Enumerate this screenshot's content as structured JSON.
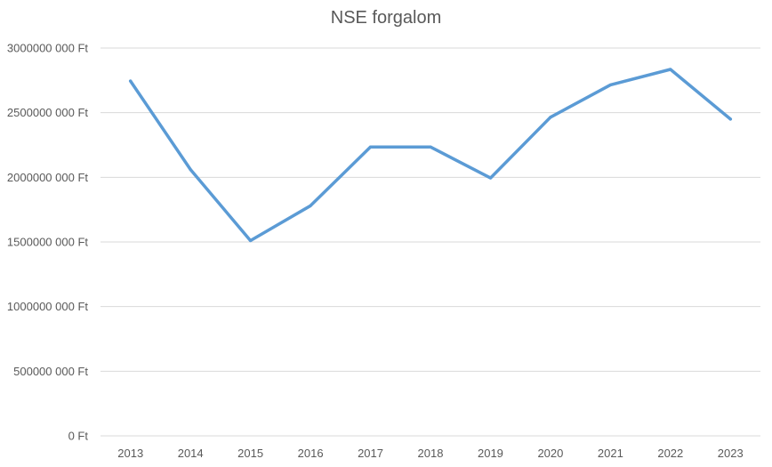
{
  "chart_data": {
    "type": "line",
    "title": "NSE forgalom",
    "xlabel": "",
    "ylabel": "",
    "categories": [
      "2013",
      "2014",
      "2015",
      "2016",
      "2017",
      "2018",
      "2019",
      "2020",
      "2021",
      "2022",
      "2023"
    ],
    "series": [
      {
        "values": [
          2745000000,
          2060000000,
          1510000000,
          1780000000,
          2235000000,
          2235000000,
          1995000000,
          2465000000,
          2715000000,
          2835000000,
          2450000000
        ]
      }
    ],
    "ylim": [
      0,
      3000000000
    ],
    "yticks": [
      {
        "value": 0,
        "label": "0 Ft"
      },
      {
        "value": 500000000,
        "label": "500000 000 Ft"
      },
      {
        "value": 1000000000,
        "label": "1000000 000 Ft"
      },
      {
        "value": 1500000000,
        "label": "1500000 000 Ft"
      },
      {
        "value": 2000000000,
        "label": "2000000 000 Ft"
      },
      {
        "value": 2500000000,
        "label": "2500000 000 Ft"
      },
      {
        "value": 3000000000,
        "label": "3000000 000 Ft"
      }
    ],
    "grid": true,
    "colors": {
      "line": "#5B9BD5",
      "grid": "#D9D9D9",
      "text": "#595959"
    }
  }
}
